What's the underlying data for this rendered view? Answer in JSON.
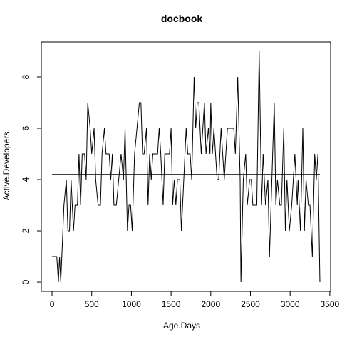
{
  "chart_data": {
    "type": "line",
    "title": "docbook",
    "x_label": "Age.Days",
    "y_label": "Active.Developers",
    "x": [
      0,
      30,
      60,
      80,
      95,
      110,
      150,
      180,
      200,
      220,
      240,
      270,
      290,
      320,
      340,
      360,
      380,
      410,
      430,
      450,
      480,
      500,
      530,
      550,
      580,
      610,
      630,
      660,
      680,
      720,
      740,
      760,
      780,
      810,
      840,
      870,
      900,
      920,
      950,
      970,
      990,
      1010,
      1040,
      1070,
      1100,
      1120,
      1140,
      1160,
      1190,
      1210,
      1230,
      1250,
      1270,
      1300,
      1330,
      1350,
      1370,
      1400,
      1420,
      1450,
      1480,
      1500,
      1520,
      1540,
      1560,
      1580,
      1610,
      1630,
      1660,
      1690,
      1710,
      1740,
      1760,
      1790,
      1810,
      1830,
      1850,
      1880,
      1900,
      1920,
      1940,
      1970,
      1990,
      2000,
      2020,
      2040,
      2060,
      2080,
      2100,
      2130,
      2150,
      2170,
      2190,
      2210,
      2230,
      2260,
      2290,
      2310,
      2340,
      2370,
      2380,
      2410,
      2440,
      2460,
      2490,
      2510,
      2530,
      2560,
      2580,
      2610,
      2640,
      2660,
      2690,
      2720,
      2740,
      2780,
      2800,
      2820,
      2840,
      2870,
      2890,
      2920,
      2940,
      2960,
      2990,
      3020,
      3040,
      3060,
      3090,
      3100,
      3130,
      3160,
      3180,
      3200,
      3230,
      3250,
      3280,
      3310,
      3330,
      3350,
      3375
    ],
    "values": [
      1,
      1,
      1,
      0,
      1,
      0,
      3,
      4,
      2,
      2,
      4,
      2,
      3,
      3,
      5,
      3,
      5,
      5,
      4,
      7,
      6,
      5,
      6,
      4,
      3,
      3,
      5,
      6,
      5,
      5,
      4,
      5,
      3,
      3,
      4,
      5,
      4,
      6,
      2,
      3,
      3,
      2,
      5,
      6,
      7,
      7,
      5,
      5,
      6,
      3,
      5,
      4,
      5,
      5,
      5,
      6,
      5,
      3,
      5,
      5,
      5,
      6,
      3,
      4,
      3,
      4,
      4,
      2,
      4,
      6,
      5,
      5,
      4,
      8,
      6,
      7,
      7,
      5,
      6,
      7,
      5,
      6,
      5,
      7,
      5,
      6,
      5,
      4,
      4,
      6,
      5,
      4,
      5,
      6,
      6,
      6,
      6,
      5,
      8,
      4,
      0,
      4,
      5,
      3,
      4,
      4,
      3,
      3,
      3,
      9,
      3,
      5,
      3,
      4,
      1,
      5,
      7,
      3,
      4,
      3,
      3,
      6,
      2,
      4,
      2,
      3,
      4,
      5,
      3,
      4,
      2,
      6,
      2,
      4,
      3,
      3,
      1,
      5,
      4,
      5,
      0
    ],
    "color": "#000000",
    "hline": 4.2,
    "xlim": [
      -135,
      3510
    ],
    "ylim": [
      -0.36,
      9.36
    ],
    "xticks": [
      0,
      500,
      1000,
      1500,
      2000,
      2500,
      3000,
      3500
    ],
    "yticks": [
      0,
      2,
      4,
      6,
      8
    ]
  }
}
